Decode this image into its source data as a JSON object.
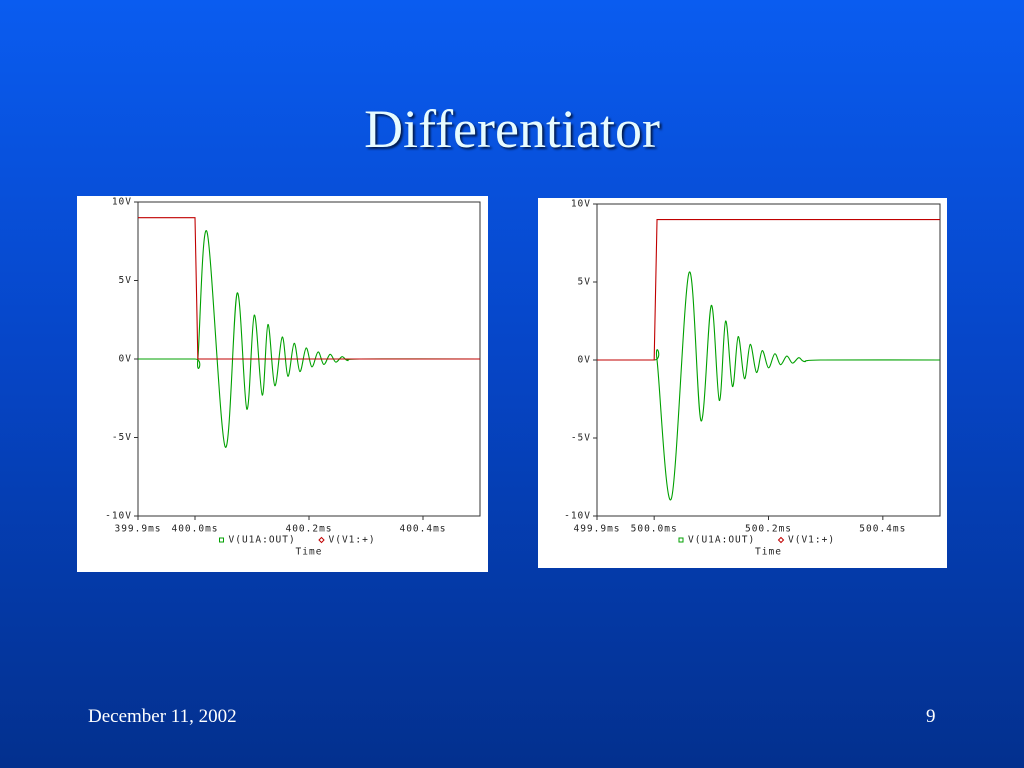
{
  "slide": {
    "title": "Differentiator",
    "date": "December 11, 2002",
    "page": "9"
  },
  "chart_data": [
    {
      "type": "line",
      "x": [
        399.9,
        400.0,
        400.005,
        400.021,
        400.053,
        400.074,
        400.091,
        400.104,
        400.118,
        400.128,
        400.14,
        400.153,
        400.163,
        400.174,
        400.184,
        400.195,
        400.205,
        400.216,
        400.226,
        400.237,
        400.247,
        400.258,
        400.268,
        400.289,
        400.5
      ],
      "xlim": [
        399.9,
        400.5
      ],
      "xticks": [
        {
          "value": 399.9,
          "label": "399.9ms"
        },
        {
          "value": 400.0,
          "label": "400.0ms"
        },
        {
          "value": 400.2,
          "label": "400.2ms"
        },
        {
          "value": 400.4,
          "label": "400.4ms"
        }
      ],
      "ylim": [
        -10,
        10
      ],
      "yticks": [
        {
          "value": -10,
          "label": "-10V"
        },
        {
          "value": -5,
          "label": "-5V"
        },
        {
          "value": 0,
          "label": "0V"
        },
        {
          "value": 5,
          "label": "5V"
        },
        {
          "value": 10,
          "label": "10V"
        }
      ],
      "xlabel": "Time",
      "series": [
        {
          "name": "V(U1A:OUT)",
          "color": "#00a000",
          "marker": "square",
          "values": [
            0,
            0,
            0,
            8.1,
            -5.6,
            4.2,
            -3.2,
            2.8,
            -2.3,
            2.2,
            -1.7,
            1.4,
            -1.1,
            1.0,
            -0.8,
            0.7,
            -0.5,
            0.45,
            -0.35,
            0.3,
            -0.2,
            0.15,
            -0.1,
            0,
            0
          ]
        },
        {
          "name": "V(V1:+)",
          "color": "#c00000",
          "marker": "diamond",
          "values": [
            9,
            9,
            0,
            0,
            0,
            0,
            0,
            0,
            0,
            0,
            0,
            0,
            0,
            0,
            0,
            0,
            0,
            0,
            0,
            0,
            0,
            0,
            0,
            0,
            0
          ]
        }
      ]
    },
    {
      "type": "line",
      "x": [
        499.9,
        500.0,
        500.005,
        500.03,
        500.061,
        500.082,
        500.1,
        500.114,
        500.125,
        500.137,
        500.147,
        500.158,
        500.168,
        500.179,
        500.189,
        500.2,
        500.211,
        500.221,
        500.232,
        500.242,
        500.253,
        500.263,
        500.291,
        500.5
      ],
      "xlim": [
        499.9,
        500.5
      ],
      "xticks": [
        {
          "value": 499.9,
          "label": "499.9ms"
        },
        {
          "value": 500.0,
          "label": "500.0ms"
        },
        {
          "value": 500.2,
          "label": "500.2ms"
        },
        {
          "value": 500.4,
          "label": "500.4ms"
        }
      ],
      "ylim": [
        -10,
        10
      ],
      "yticks": [
        {
          "value": -10,
          "label": "-10V"
        },
        {
          "value": -5,
          "label": "-5V"
        },
        {
          "value": 0,
          "label": "0V"
        },
        {
          "value": 5,
          "label": "5V"
        },
        {
          "value": 10,
          "label": "10V"
        }
      ],
      "xlabel": "Time",
      "series": [
        {
          "name": "V(U1A:OUT)",
          "color": "#00a000",
          "marker": "square",
          "values": [
            0,
            0,
            0,
            -8.9,
            5.6,
            -3.9,
            3.5,
            -2.6,
            2.5,
            -1.7,
            1.5,
            -1.2,
            1.0,
            -0.8,
            0.6,
            -0.5,
            0.4,
            -0.3,
            0.25,
            -0.2,
            0.15,
            -0.1,
            0,
            0
          ]
        },
        {
          "name": "V(V1:+)",
          "color": "#c00000",
          "marker": "diamond",
          "values": [
            0,
            0,
            9,
            9,
            9,
            9,
            9,
            9,
            9,
            9,
            9,
            9,
            9,
            9,
            9,
            9,
            9,
            9,
            9,
            9,
            9,
            9,
            9,
            9
          ]
        }
      ]
    }
  ]
}
